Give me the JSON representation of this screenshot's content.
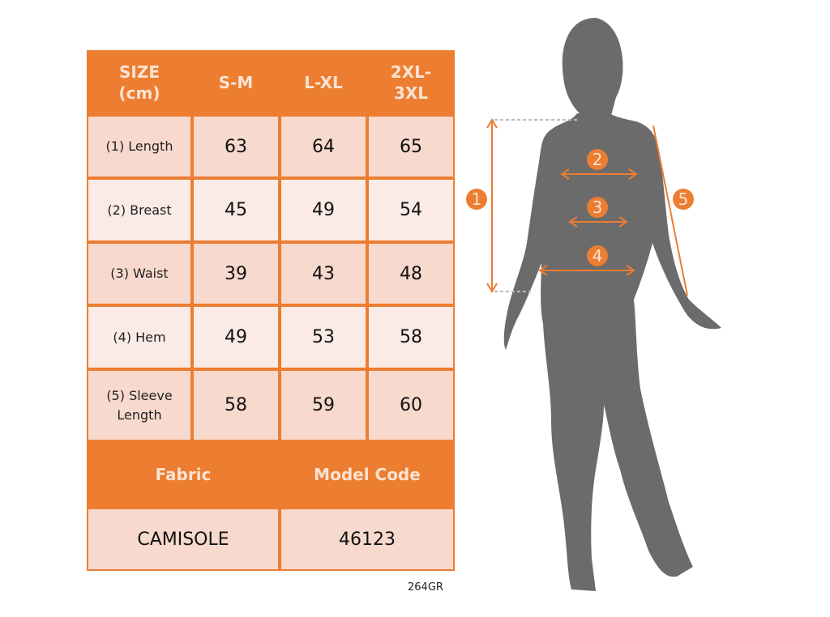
{
  "table": {
    "header": [
      "SIZE\n(cm)",
      "S-M",
      "L-XL",
      "2XL-\n3XL"
    ],
    "rows": [
      {
        "label": "(1) Length",
        "values": [
          "63",
          "64",
          "65"
        ]
      },
      {
        "label": "(2) Breast",
        "values": [
          "45",
          "49",
          "54"
        ]
      },
      {
        "label": "(3) Waist",
        "values": [
          "39",
          "43",
          "48"
        ]
      },
      {
        "label": "(4) Hem",
        "values": [
          "49",
          "53",
          "58"
        ]
      },
      {
        "label": "(5) Sleeve\nLength",
        "values": [
          "58",
          "59",
          "60"
        ]
      }
    ],
    "footer_headers": [
      "Fabric",
      "Model Code"
    ],
    "footer_values": [
      "CAMISOLE",
      "46123"
    ]
  },
  "product_code": "264GR",
  "figure": {
    "markers": [
      "1",
      "2",
      "3",
      "4",
      "5"
    ],
    "colors": {
      "accent": "#ec7d31",
      "silhouette": "#6b6b6b",
      "header_text": "#fbe3d1"
    }
  }
}
